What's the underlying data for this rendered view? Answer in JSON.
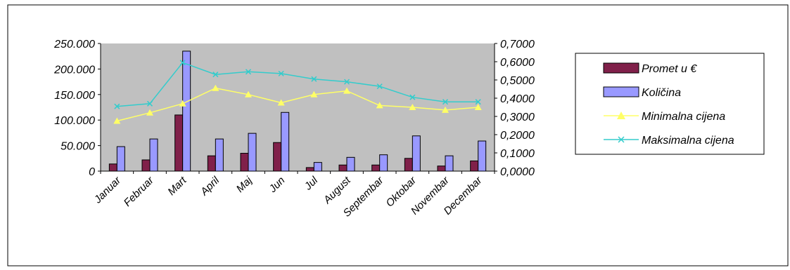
{
  "chart_data": {
    "type": "bar",
    "categories": [
      "Januar",
      "Februar",
      "Mart",
      "April",
      "Maj",
      "Jun",
      "Jul",
      "August",
      "Septembar",
      "Oktobar",
      "Novembar",
      "Decembar"
    ],
    "y_left": {
      "min": 0,
      "max": 250000,
      "step": 50000,
      "tick_labels": [
        "0",
        "50.000",
        "100.000",
        "150.000",
        "200.000",
        "250.000"
      ]
    },
    "y_right": {
      "min": 0,
      "max": 0.7,
      "step": 0.1,
      "tick_labels": [
        "0,0000",
        "0,1000",
        "0,2000",
        "0,3000",
        "0,4000",
        "0,5000",
        "0,6000",
        "0,7000"
      ]
    },
    "series": [
      {
        "name": "Promet u €",
        "type": "bar",
        "axis": "left",
        "color": "#80204a",
        "values": [
          14000,
          22000,
          110000,
          30000,
          35000,
          56000,
          7000,
          12000,
          12000,
          25000,
          10000,
          20000
        ]
      },
      {
        "name": "Količina",
        "type": "bar",
        "axis": "left",
        "color": "#9999ff",
        "values": [
          48000,
          63000,
          235000,
          63000,
          74000,
          115000,
          17000,
          27000,
          32000,
          69000,
          30000,
          59000
        ]
      },
      {
        "name": "Minimalna cijena",
        "type": "line",
        "axis": "right",
        "color": "#ffff66",
        "marker": "triangle",
        "values": [
          0.275,
          0.32,
          0.37,
          0.455,
          0.42,
          0.375,
          0.42,
          0.44,
          0.36,
          0.35,
          0.335,
          0.35
        ]
      },
      {
        "name": "Maksimalna cijena",
        "type": "line",
        "axis": "right",
        "color": "#33cccc",
        "marker": "x",
        "values": [
          0.355,
          0.37,
          0.595,
          0.53,
          0.545,
          0.535,
          0.505,
          0.49,
          0.465,
          0.405,
          0.38,
          0.38
        ]
      }
    ],
    "plot_background": "#c0c0c0",
    "grid": false,
    "legend": "right"
  }
}
